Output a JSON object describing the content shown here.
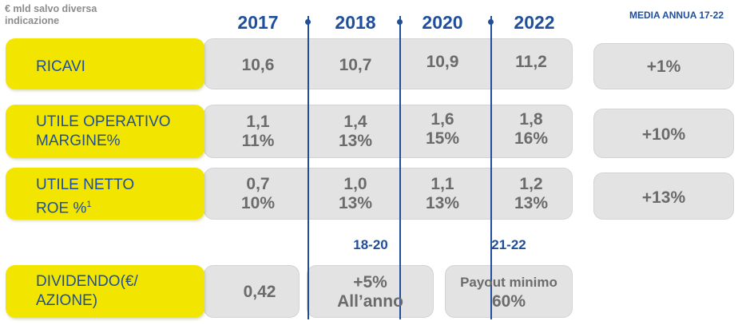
{
  "note": "€ mld salvo diversa indicazione",
  "years": [
    "2017",
    "2018",
    "2020",
    "2022"
  ],
  "average_header": "MEDIA ANNUA 17-22",
  "rows": [
    {
      "label_lines": [
        "RICAVI"
      ],
      "values": [
        [
          "10,6"
        ],
        [
          "10,7"
        ],
        [
          "10,9"
        ],
        [
          "11,2"
        ]
      ],
      "average": "+1%"
    },
    {
      "label_lines": [
        "UTILE OPERATIVO",
        "MARGINE%"
      ],
      "values": [
        [
          "1,1",
          "11%"
        ],
        [
          "1,4",
          "13%"
        ],
        [
          "1,6",
          "15%"
        ],
        [
          "1,8",
          "16%"
        ]
      ],
      "average": "+10%"
    },
    {
      "label_lines": [
        "UTILE NETTO",
        "ROE %"
      ],
      "footnote_mark": "1",
      "values": [
        [
          "0,7",
          "10%"
        ],
        [
          "1,0",
          "13%"
        ],
        [
          "1,1",
          "13%"
        ],
        [
          "1,2",
          "13%"
        ]
      ],
      "average": "+13%"
    }
  ],
  "dividend": {
    "label_lines": [
      "DIVIDENDO(€/",
      "AZIONE)"
    ],
    "value_2017": "0,42",
    "period_1": {
      "label": "18-20",
      "lines": [
        "+5%",
        "All’anno"
      ]
    },
    "period_2": {
      "label": "21-22",
      "lines": [
        "Payout minimo",
        "60%"
      ]
    }
  }
}
